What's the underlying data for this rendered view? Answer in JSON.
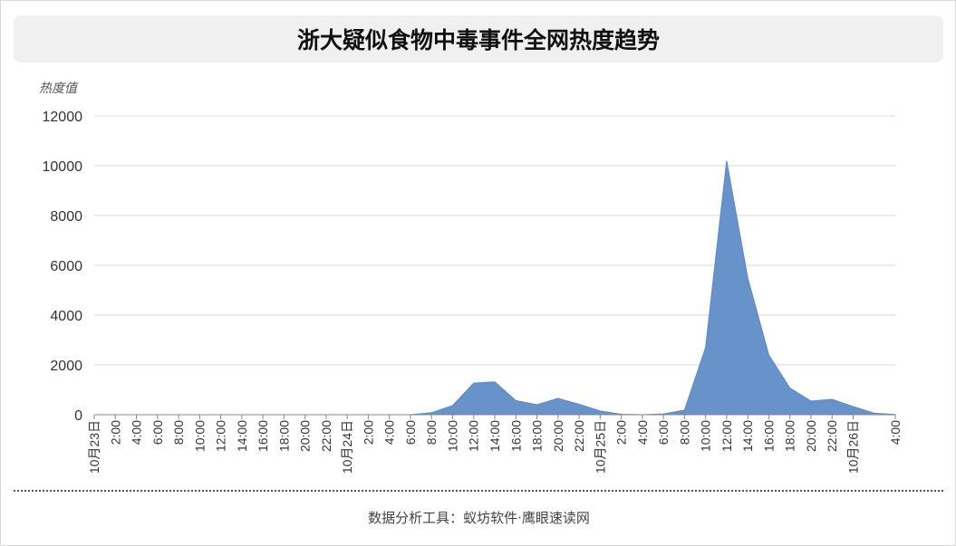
{
  "title": "浙大疑似食物中毒事件全网热度趋势",
  "footer": "数据分析工具：蚁坊软件·鹰眼速读网",
  "chart_data": {
    "type": "area",
    "title": "浙大疑似食物中毒事件全网热度趋势",
    "ylabel": "热度值",
    "xlabel": "",
    "ylim": [
      0,
      12000
    ],
    "yticks": [
      0,
      2000,
      4000,
      6000,
      8000,
      10000,
      12000
    ],
    "grid": true,
    "color": "#5b8ac6",
    "x": [
      "10月23日",
      "2:00",
      "4:00",
      "6:00",
      "8:00",
      "10:00",
      "12:00",
      "14:00",
      "16:00",
      "18:00",
      "20:00",
      "22:00",
      "10月24日",
      "2:00",
      "4:00",
      "6:00",
      "8:00",
      "10:00",
      "12:00",
      "14:00",
      "16:00",
      "18:00",
      "20:00",
      "22:00",
      "10月25日",
      "2:00",
      "4:00",
      "6:00",
      "8:00",
      "10:00",
      "12:00",
      "14:00",
      "16:00",
      "18:00",
      "20:00",
      "22:00",
      "10月26日",
      "2:00",
      "4:00"
    ],
    "x_tick_labels": [
      "10月23日",
      "4:00",
      "6:00",
      "8:00",
      "10:00",
      "12:00",
      "14:00",
      "16:00",
      "18:00",
      "20:00",
      "22:00",
      "10月24日",
      "2:00",
      "4:00",
      "6:00",
      "8:00",
      "10:00",
      "12:00",
      "14:00",
      "16:00",
      "18:00",
      "20:00",
      "22:00",
      "10月25日",
      "2:00",
      "4:00",
      "6:00",
      "8:00",
      "10:00",
      "12:00",
      "14:00",
      "16:00",
      "18:00",
      "20:00",
      "22:00",
      "10月26日",
      "2:00",
      "4:00"
    ],
    "values": [
      0,
      0,
      0,
      0,
      0,
      0,
      0,
      0,
      0,
      0,
      0,
      0,
      0,
      0,
      0,
      0,
      80,
      370,
      1270,
      1320,
      570,
      400,
      660,
      420,
      150,
      20,
      0,
      30,
      180,
      2700,
      10200,
      5500,
      2400,
      1070,
      550,
      620,
      330,
      60,
      10
    ]
  }
}
